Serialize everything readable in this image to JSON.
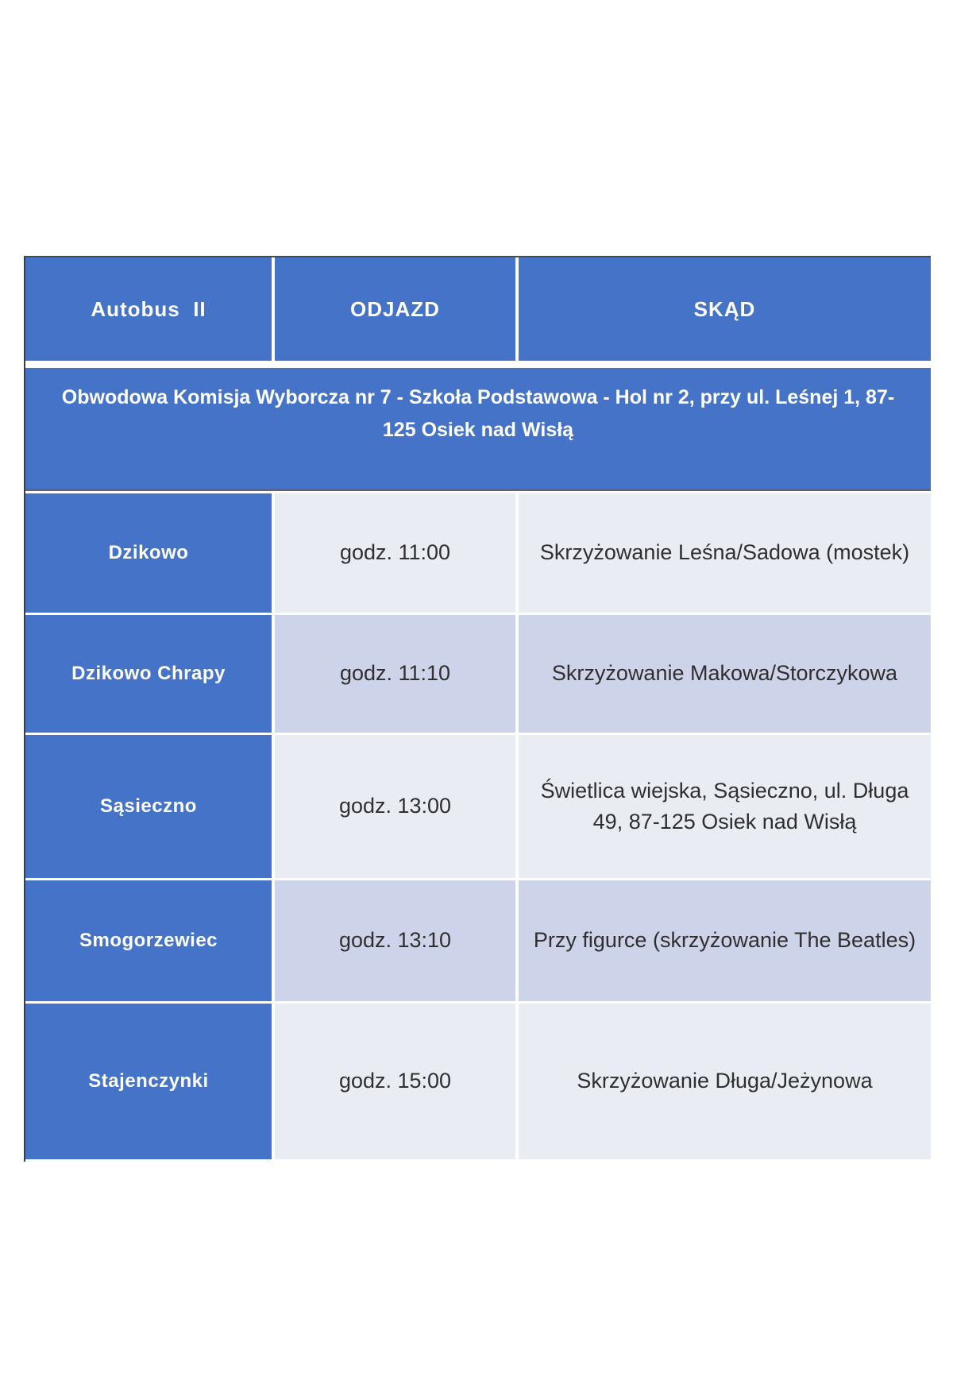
{
  "table": {
    "header": {
      "col1": "Autobus  II",
      "col2": "ODJAZD",
      "col3": "SKĄD"
    },
    "banner": "Obwodowa Komisja Wyborcza nr 7 - Szkoła Podstawowa - Hol nr 2, przy ul. Leśnej 1, 87-125 Osiek nad Wisłą",
    "rows": [
      {
        "stop": "Dzikowo",
        "departure": "godz. 11:00",
        "from": "Skrzyżowanie Leśna/Sadowa (mostek)"
      },
      {
        "stop": "Dzikowo Chrapy",
        "departure": "godz. 11:10",
        "from": "Skrzyżowanie Makowa/Storczykowa"
      },
      {
        "stop": "Sąsieczno",
        "departure": "godz. 13:00",
        "from": "Świetlica wiejska, Sąsieczno, ul. Długa 49, 87-125 Osiek nad Wisłą"
      },
      {
        "stop": "Smogorzewiec",
        "departure": "godz. 13:10",
        "from": "Przy figurce (skrzyżowanie The Beatles)"
      },
      {
        "stop": "Stajenczynki",
        "departure": "godz. 15:00",
        "from": "Skrzyżowanie Długa/Jeżynowa"
      }
    ],
    "colors": {
      "header_bg": "#4573C7",
      "row_light_bg": "#EAECF4",
      "row_alt_bg": "#CDD3E8",
      "header_text": "#FFFFFF",
      "body_text": "#2F2F2F"
    }
  }
}
